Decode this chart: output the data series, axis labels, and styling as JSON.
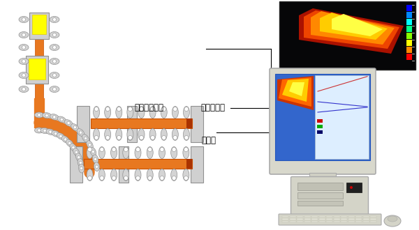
{
  "bg_color": "#ffffff",
  "label_infrared": "赤外線カメラ",
  "label_pressure": "圧カセンサ",
  "label_thermocouple": "熱電対",
  "orange": "#e87820",
  "orange_dark": "#c85000",
  "gray_light": "#d0d0d0",
  "gray_mid": "#b0b0b0",
  "gray_dark": "#909090",
  "yellow": "#ffff00",
  "yellow_dark": "#e0d000",
  "black": "#000000",
  "roller_fill": "#d4d4d4",
  "roller_edge": "#909090",
  "font_size": 8
}
